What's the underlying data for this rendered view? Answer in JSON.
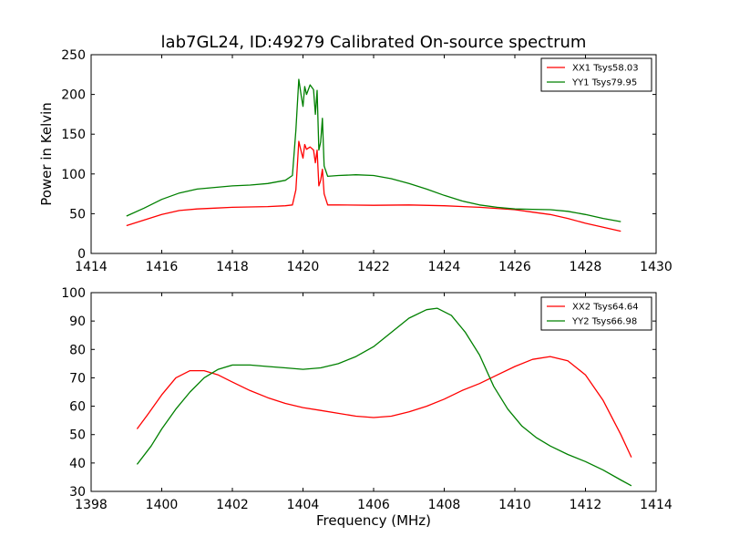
{
  "title": "lab7GL24, ID:49279 Calibrated On-source spectrum",
  "chart_data": [
    {
      "type": "line",
      "ylabel": "Power in Kelvin",
      "xlabel": "",
      "xlim": [
        1414,
        1430
      ],
      "ylim": [
        0,
        250
      ],
      "xticks": [
        "1414",
        "1416",
        "1418",
        "1420",
        "1422",
        "1424",
        "1426",
        "1428",
        "1430"
      ],
      "yticks": [
        "0",
        "50",
        "100",
        "150",
        "200",
        "250"
      ],
      "legend_position": "top-right",
      "series": [
        {
          "name": "XX1 Tsys58.03",
          "color": "#ff0000",
          "x": [
            1415.0,
            1415.5,
            1416.0,
            1416.5,
            1417.0,
            1417.5,
            1418.0,
            1418.5,
            1419.0,
            1419.5,
            1419.7,
            1419.8,
            1419.88,
            1419.95,
            1420.0,
            1420.05,
            1420.1,
            1420.2,
            1420.3,
            1420.35,
            1420.4,
            1420.45,
            1420.5,
            1420.55,
            1420.6,
            1420.7,
            1421.0,
            1422.0,
            1423.0,
            1424.0,
            1425.0,
            1426.0,
            1426.5,
            1427.0,
            1427.5,
            1428.0,
            1428.5,
            1429.0
          ],
          "y": [
            35,
            42,
            49,
            54,
            56,
            57,
            58,
            58.5,
            59,
            60,
            61,
            80,
            141,
            128,
            120,
            137,
            131,
            134,
            130,
            114,
            130,
            85,
            92,
            106,
            75,
            61,
            61,
            60.5,
            61,
            60,
            58,
            55,
            52,
            49,
            44,
            38,
            33,
            28
          ]
        },
        {
          "name": "YY1 Tsys79.95",
          "color": "#008000",
          "x": [
            1415.0,
            1415.5,
            1416.0,
            1416.5,
            1417.0,
            1417.5,
            1418.0,
            1418.5,
            1419.0,
            1419.5,
            1419.7,
            1419.8,
            1419.88,
            1419.95,
            1420.0,
            1420.05,
            1420.1,
            1420.2,
            1420.3,
            1420.35,
            1420.4,
            1420.45,
            1420.5,
            1420.55,
            1420.6,
            1420.7,
            1421.0,
            1421.5,
            1422.0,
            1422.5,
            1423.0,
            1423.5,
            1424.0,
            1424.5,
            1425.0,
            1425.5,
            1426.0,
            1426.5,
            1427.0,
            1427.5,
            1428.0,
            1428.5,
            1429.0
          ],
          "y": [
            47,
            57,
            68,
            76,
            81,
            83,
            85,
            86,
            88,
            92,
            98,
            155,
            219,
            198,
            185,
            210,
            200,
            212,
            206,
            175,
            205,
            130,
            140,
            170,
            110,
            97,
            98,
            99,
            98,
            94,
            88,
            81,
            73,
            66,
            61,
            58,
            56,
            55.5,
            55,
            53,
            49,
            44,
            40
          ]
        }
      ]
    },
    {
      "type": "line",
      "ylabel": "",
      "xlabel": "Frequency (MHz)",
      "xlim": [
        1398,
        1414
      ],
      "ylim": [
        30,
        100
      ],
      "xticks": [
        "1398",
        "1400",
        "1402",
        "1404",
        "1406",
        "1408",
        "1410",
        "1412",
        "1414"
      ],
      "yticks": [
        "30",
        "40",
        "50",
        "60",
        "70",
        "80",
        "90",
        "100"
      ],
      "legend_position": "top-right",
      "series": [
        {
          "name": "XX2 Tsys64.64",
          "color": "#ff0000",
          "x": [
            1399.3,
            1399.6,
            1400.0,
            1400.4,
            1400.8,
            1401.2,
            1401.6,
            1402.0,
            1402.5,
            1403.0,
            1403.5,
            1404.0,
            1404.5,
            1405.0,
            1405.5,
            1406.0,
            1406.5,
            1407.0,
            1407.5,
            1408.0,
            1408.5,
            1409.0,
            1409.5,
            1410.0,
            1410.5,
            1411.0,
            1411.5,
            1412.0,
            1412.5,
            1413.0,
            1413.3
          ],
          "y": [
            52,
            57,
            64,
            70,
            72.5,
            72.5,
            71,
            68.5,
            65.5,
            63,
            61,
            59.5,
            58.5,
            57.5,
            56.5,
            56,
            56.5,
            58,
            60,
            62.5,
            65.5,
            68,
            71,
            74,
            76.5,
            77.5,
            76,
            71,
            62,
            50,
            42
          ]
        },
        {
          "name": "YY2 Tsys66.98",
          "color": "#008000",
          "x": [
            1399.3,
            1399.7,
            1400.0,
            1400.4,
            1400.8,
            1401.2,
            1401.6,
            1402.0,
            1402.5,
            1403.0,
            1403.5,
            1404.0,
            1404.5,
            1405.0,
            1405.5,
            1406.0,
            1406.5,
            1407.0,
            1407.5,
            1407.8,
            1408.2,
            1408.6,
            1409.0,
            1409.4,
            1409.8,
            1410.2,
            1410.6,
            1411.0,
            1411.5,
            1412.0,
            1412.5,
            1413.0,
            1413.3
          ],
          "y": [
            39.5,
            46,
            52,
            59,
            65,
            70,
            73,
            74.5,
            74.5,
            74,
            73.5,
            73,
            73.5,
            75,
            77.5,
            81,
            86,
            91,
            94,
            94.5,
            92,
            86,
            78,
            67,
            59,
            53,
            49,
            46,
            43,
            40.5,
            37.5,
            34,
            32
          ]
        }
      ]
    }
  ]
}
